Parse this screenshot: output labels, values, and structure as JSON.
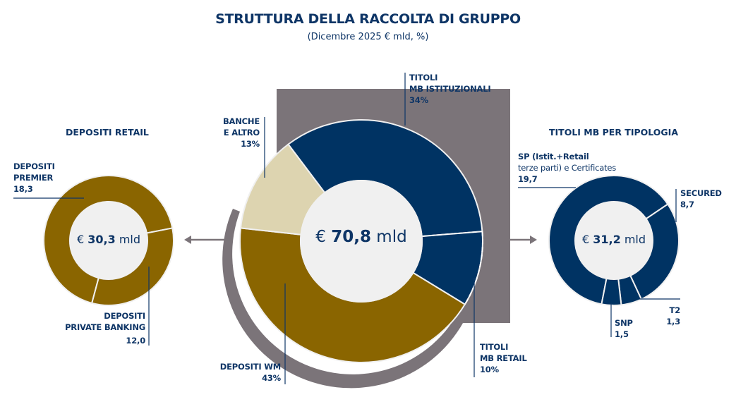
{
  "header": {
    "title": "STRUTTURA DELLA RACCOLTA DI GRUPPO",
    "subtitle": "(Dicembre 2025 € mld, %)"
  },
  "colors": {
    "navy": "#003363",
    "gold": "#8a6500",
    "beige": "#ddd4b0",
    "gray": "#7b7479",
    "inner": "#f0f0f0",
    "text": "#0e3566"
  },
  "left_panel": {
    "title": "DEPOSITI RETAIL",
    "center": {
      "prefix": "€",
      "value": "30,3",
      "unit": "mld"
    },
    "labels": {
      "premier": {
        "line1": "DEPOSITI",
        "line2": "PREMIER",
        "value": "18,3"
      },
      "private": {
        "line1": "DEPOSITI",
        "line2": "PRIVATE BANKING",
        "value": "12,0"
      }
    }
  },
  "main_panel": {
    "center": {
      "prefix": "€",
      "value": "70,8",
      "unit": "mld"
    },
    "labels": {
      "istituzionali": {
        "line1": "TITOLI",
        "line2": "MB ISTITUZIONALI",
        "value": "34%"
      },
      "banche": {
        "line1": "BANCHE",
        "line2": "E ALTRO",
        "value": "13%"
      },
      "depositi_wm": {
        "line1": "DEPOSITI WM",
        "value": "43%"
      },
      "retail": {
        "line1": "TITOLI",
        "line2": "MB RETAIL",
        "value": "10%"
      }
    }
  },
  "right_panel": {
    "title": "TITOLI MB PER TIPOLOGIA",
    "center": {
      "prefix": "€",
      "value": "31,2",
      "unit": "mld"
    },
    "labels": {
      "sp": {
        "line1": "SP (Istit.+Retail",
        "line2": "terze parti) e Certificates",
        "value": "19,7"
      },
      "secured": {
        "line1": "SECURED",
        "value": "8,7"
      },
      "t2": {
        "line1": "T2",
        "value": "1,3"
      },
      "snp": {
        "line1": "SNP",
        "value": "1,5"
      }
    }
  },
  "chart_data": [
    {
      "type": "pie",
      "title": "STRUTTURA DELLA RACCOLTA DI GRUPPO",
      "subtitle": "(Dicembre 2025 € mld, %)",
      "total": "€ 70,8 mld",
      "categories": [
        "TITOLI MB ISTITUZIONALI",
        "TITOLI MB RETAIL",
        "DEPOSITI WM",
        "BANCHE E ALTRO"
      ],
      "values": [
        34,
        10,
        43,
        13
      ],
      "unit": "%",
      "donut": true
    },
    {
      "type": "pie",
      "title": "DEPOSITI RETAIL",
      "total": "€ 30,3 mld",
      "categories": [
        "DEPOSITI PREMIER",
        "DEPOSITI PRIVATE BANKING"
      ],
      "values": [
        18.3,
        12.0
      ],
      "unit": "€ mld",
      "donut": true
    },
    {
      "type": "pie",
      "title": "TITOLI MB PER TIPOLOGIA",
      "total": "€ 31,2 mld",
      "categories": [
        "SP (Istit.+Retail terze parti) e Certificates",
        "SECURED",
        "T2",
        "SNP"
      ],
      "values": [
        19.7,
        8.7,
        1.3,
        1.5
      ],
      "unit": "€ mld",
      "donut": true
    }
  ]
}
